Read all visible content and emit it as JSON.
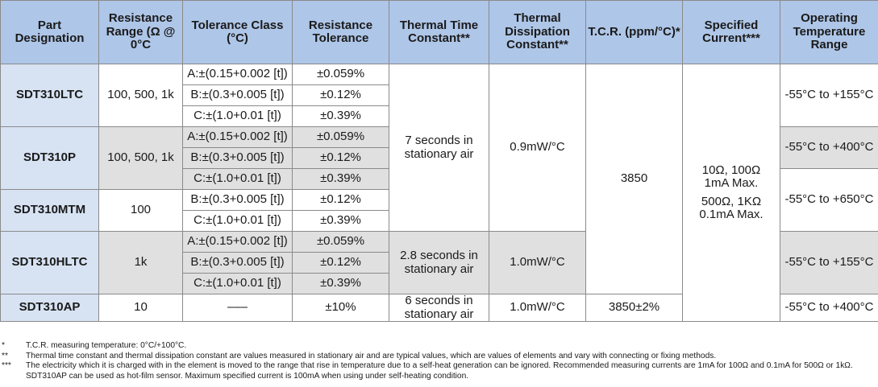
{
  "header": {
    "part": "Part Designation",
    "range": "Resistance Range (Ω @ 0°C",
    "class": "Tolerance Class (°C)",
    "tolerance": "Resistance Tolerance",
    "time_const": "Thermal Time Constant**",
    "dissipation": "Thermal Dissipation Constant**",
    "tcr": "T.C.R. (ppm/°C)*",
    "current": "Specified Current***",
    "temp": "Operating Temperature Range"
  },
  "cells": {
    "ltc_part": "SDT310LTC",
    "ltc_range": "100, 500, 1k",
    "ltc_a_class": "A:±(0.15+0.002 [t])",
    "ltc_a_tol": "±0.059%",
    "ltc_b_class": "B:±(0.3+0.005 [t])",
    "ltc_b_tol": "±0.12%",
    "ltc_c_class": "C:±(1.0+0.01 [t])",
    "ltc_c_tol": "±0.39%",
    "ltc_temp": "-55°C to +155°C",
    "p_part": "SDT310P",
    "p_range": "100, 500, 1k",
    "p_a_class": "A:±(0.15+0.002 [t])",
    "p_a_tol": "±0.059%",
    "p_b_class": "B:±(0.3+0.005 [t])",
    "p_b_tol": "±0.12%",
    "p_c_class": "C:±(1.0+0.01 [t])",
    "p_c_tol": "±0.39%",
    "p_temp": "-55°C to +400°C",
    "mtm_part": "SDT310MTM",
    "mtm_range": "100",
    "mtm_b_class": "B:±(0.3+0.005 [t])",
    "mtm_b_tol": "±0.12%",
    "mtm_c_class": "C:±(1.0+0.01 [t])",
    "mtm_c_tol": "±0.39%",
    "mtm_temp": "-55°C to +650°C",
    "hltc_part": "SDT310HLTC",
    "hltc_range": "1k",
    "hltc_a_class": "A:±(0.15+0.002 [t])",
    "hltc_a_tol": "±0.059%",
    "hltc_b_class": "B:±(0.3+0.005 [t])",
    "hltc_b_tol": "±0.12%",
    "hltc_c_class": "C:±(1.0+0.01 [t])",
    "hltc_c_tol": "±0.39%",
    "hltc_temp": "-55°C to +155°C",
    "ap_part": "SDT310AP",
    "ap_range": "10",
    "ap_class": "–––",
    "ap_tol": "±10%",
    "ap_temp": "-55°C to +400°C",
    "time_7": "7 seconds in stationary air",
    "time_28": "2.8 seconds in stationary air",
    "time_6": "6 seconds in stationary air",
    "diss_09": "0.9mW/°C",
    "diss_10a": "1.0mW/°C",
    "diss_10b": "1.0mW/°C",
    "tcr_main": "3850",
    "tcr_ap": "3850±2%",
    "current_line1": "10Ω, 100Ω",
    "current_line2": "1mA Max.",
    "current_line3": "500Ω, 1KΩ",
    "current_line4": "0.1mA Max."
  },
  "footnotes": [
    {
      "mark": "*",
      "text": "T.C.R. measuring temperature: 0°C/+100°C."
    },
    {
      "mark": "**",
      "text": "Thermal time constant and thermal dissipation constant are values measured in stationary air and are typical values, which are values of elements and vary with connecting or fixing methods."
    },
    {
      "mark": "***",
      "text": "The electricity which it is charged with in the element is moved to the range that rise in temperature due to a self-heat generation can be ignored. Recommended measuring currents are 1mA for 100Ω and 0.1mA for 500Ω or 1kΩ. SDT310AP can be used as hot-film sensor. Maximum specified current is 100mA when using under self-heating condition."
    }
  ]
}
